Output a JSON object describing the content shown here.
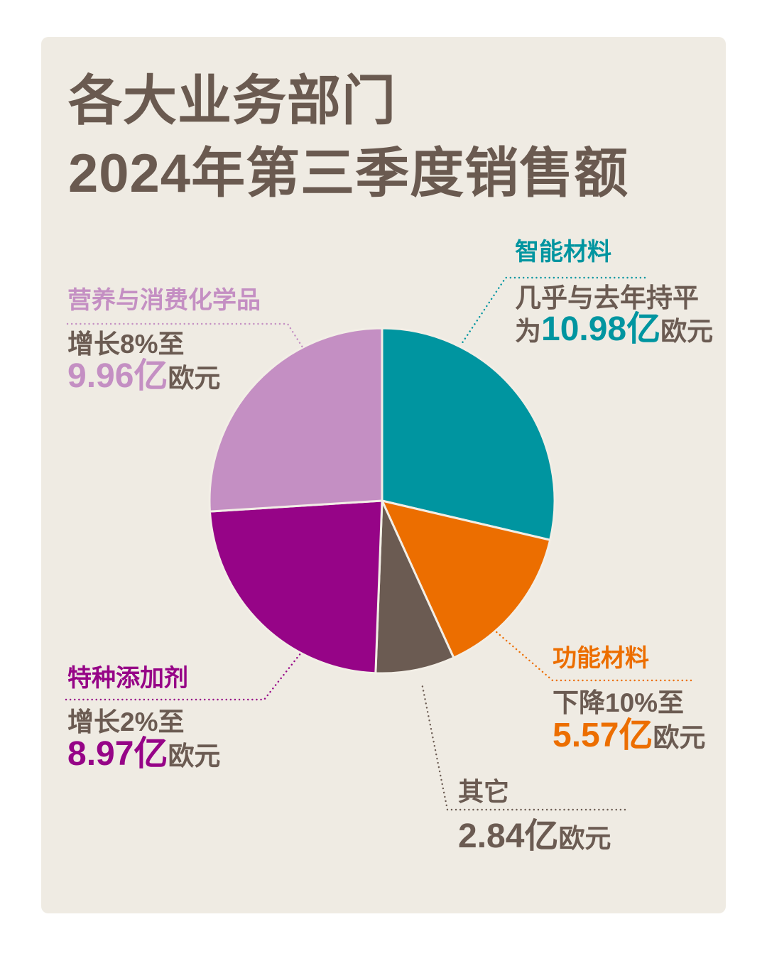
{
  "title": {
    "line1": "各大业务部门",
    "line2": "2024年第三季度销售额"
  },
  "colors": {
    "page_margin": "#FFFFFF",
    "panel_background": "#EFEBE3",
    "slice_separator": "#F2EEE6",
    "title_text": "#6A5A50",
    "body_text": "#6B5B52"
  },
  "chart_data": {
    "type": "pie",
    "title": "各大业务部门2024年第三季度销售额",
    "direction": "clockwise",
    "start_angle_deg": 0,
    "legend_position": "callout-labels",
    "series": [
      {
        "key": "smart-materials",
        "name": "智能材料",
        "value": 10.98,
        "note": "几乎与去年持平",
        "prefix": "为",
        "display_value": "10.98亿",
        "suffix": "欧元",
        "color": "#0095A0"
      },
      {
        "key": "functional-materials",
        "name": "功能材料",
        "value": 5.57,
        "note": "下降10%至",
        "prefix": "",
        "display_value": "5.57亿",
        "suffix": "欧元",
        "color": "#EC6E00"
      },
      {
        "key": "other",
        "name": "其它",
        "value": 2.84,
        "note": "",
        "prefix": "",
        "display_value": "2.84亿",
        "suffix": "欧元",
        "color": "#6B5B52"
      },
      {
        "key": "specialty-additives",
        "name": "特种添加剂",
        "value": 8.97,
        "note": "增长2%至",
        "prefix": "",
        "display_value": "8.97亿",
        "suffix": "欧元",
        "color": "#960487"
      },
      {
        "key": "nutrition-consumer-chemicals",
        "name": "营养与消费化学品",
        "value": 9.96,
        "note": "增长8%至",
        "prefix": "",
        "display_value": "9.96亿",
        "suffix": "欧元",
        "color": "#C48FC3"
      }
    ]
  }
}
